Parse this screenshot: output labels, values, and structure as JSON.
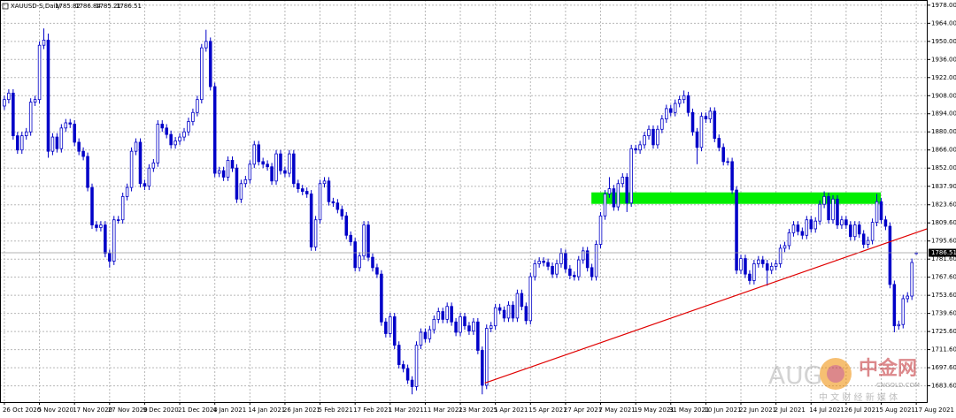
{
  "chart_data": {
    "type": "candlestick",
    "title": "XAUUSD-S,Daily",
    "xlim": [
      -1,
      210.6
    ],
    "ylim": [
      1671,
      1982
    ],
    "yticks": [
      {
        "value": 1978,
        "label": "1978.00"
      },
      {
        "value": 1964,
        "label": "1964.00"
      },
      {
        "value": 1950,
        "label": "1950.00"
      },
      {
        "value": 1936,
        "label": "1936.00"
      },
      {
        "value": 1922,
        "label": "1922.00"
      },
      {
        "value": 1908,
        "label": "1908.00"
      },
      {
        "value": 1894,
        "label": "1894.00"
      },
      {
        "value": 1880,
        "label": "1880.00"
      },
      {
        "value": 1866,
        "label": "1866.00"
      },
      {
        "value": 1852,
        "label": "1852.00"
      },
      {
        "value": 1837.9,
        "label": "1837.90"
      },
      {
        "value": 1823.6,
        "label": "1823.60"
      },
      {
        "value": 1809.6,
        "label": "1809.60"
      },
      {
        "value": 1795.6,
        "label": "1795.60"
      },
      {
        "value": 1781.6,
        "label": "1781.60"
      },
      {
        "value": 1767.6,
        "label": "1767.60"
      },
      {
        "value": 1753.6,
        "label": "1753.60"
      },
      {
        "value": 1739.6,
        "label": "1739.60"
      },
      {
        "value": 1725.6,
        "label": "1725.60"
      },
      {
        "value": 1711.6,
        "label": "1711.60"
      },
      {
        "value": 1697.6,
        "label": "1697.60"
      },
      {
        "value": 1683.6,
        "label": "1683.60"
      }
    ],
    "xticks": [
      {
        "value": 0,
        "label": "26 Oct 2020"
      },
      {
        "value": 8,
        "label": "5 Nov 2020"
      },
      {
        "value": 16,
        "label": "17 Nov 2020"
      },
      {
        "value": 24,
        "label": "27 Nov 2020"
      },
      {
        "value": 32,
        "label": "9 Dec 2020"
      },
      {
        "value": 40,
        "label": "21 Dec 2020"
      },
      {
        "value": 48,
        "label": "4 Jan 2021"
      },
      {
        "value": 56,
        "label": "14 Jan 2021"
      },
      {
        "value": 64,
        "label": "26 Jan 2021"
      },
      {
        "value": 72,
        "label": "5 Feb 2021"
      },
      {
        "value": 80,
        "label": "17 Feb 2021"
      },
      {
        "value": 88,
        "label": "1 Mar 2021"
      },
      {
        "value": 96,
        "label": "11 Mar 2021"
      },
      {
        "value": 104,
        "label": "23 Mar 2021"
      },
      {
        "value": 112,
        "label": "5 Apr 2021"
      },
      {
        "value": 120,
        "label": "15 Apr 2021"
      },
      {
        "value": 128,
        "label": "27 Apr 2021"
      },
      {
        "value": 136,
        "label": "7 May 2021"
      },
      {
        "value": 144,
        "label": "19 May 2021"
      },
      {
        "value": 152,
        "label": "31 May 2021"
      },
      {
        "value": 160,
        "label": "10 Jun 2021"
      },
      {
        "value": 168,
        "label": "22 Jun 2021"
      },
      {
        "value": 176,
        "label": "2 Jul 2021"
      },
      {
        "value": 184,
        "label": "14 Jul 2021"
      },
      {
        "value": 192,
        "label": "26 Jul 2021"
      },
      {
        "value": 200,
        "label": "5 Aug 2021"
      },
      {
        "value": 208,
        "label": "17 Aug 2021"
      }
    ],
    "grid": true,
    "up_color": "#ffffff",
    "down_color": "#0000c8",
    "line_color": "#0000c8",
    "open": [
      1900,
      1905,
      1910,
      1877,
      1866,
      1877,
      1880,
      1903,
      1905,
      1947,
      1951,
      1865,
      1876,
      1867,
      1883,
      1887,
      1886,
      1872,
      1865,
      1861,
      1837,
      1808,
      1806,
      1808,
      1786,
      1780,
      1812,
      1812,
      1830,
      1837,
      1865,
      1872,
      1840,
      1838,
      1852,
      1856,
      1886,
      1883,
      1878,
      1870,
      1873,
      1876,
      1880,
      1888,
      1895,
      1905,
      1945,
      1950,
      1915,
      1848,
      1850,
      1845,
      1858,
      1852,
      1828,
      1840,
      1843,
      1855,
      1870,
      1857,
      1855,
      1853,
      1842,
      1863,
      1850,
      1848,
      1863,
      1840,
      1836,
      1834,
      1832,
      1791,
      1812,
      1840,
      1842,
      1826,
      1825,
      1820,
      1815,
      1800,
      1795,
      1775,
      1784,
      1808,
      1783,
      1775,
      1770,
      1733,
      1724,
      1737,
      1715,
      1700,
      1697,
      1688,
      1683,
      1715,
      1725,
      1720,
      1727,
      1735,
      1741,
      1735,
      1745,
      1733,
      1725,
      1737,
      1730,
      1726,
      1733,
      1711,
      1684,
      1728,
      1730,
      1744,
      1742,
      1736,
      1746,
      1736,
      1755,
      1745,
      1734,
      1768,
      1778,
      1780,
      1779,
      1776,
      1770,
      1778,
      1786,
      1774,
      1769,
      1768,
      1781,
      1788,
      1775,
      1768,
      1793,
      1815,
      1832,
      1836,
      1822,
      1840,
      1845,
      1825,
      1867,
      1866,
      1870,
      1877,
      1882,
      1870,
      1882,
      1890,
      1898,
      1895,
      1902,
      1905,
      1908,
      1895,
      1880,
      1868,
      1892,
      1890,
      1896,
      1875,
      1868,
      1857,
      1857,
      1835,
      1773,
      1782,
      1770,
      1765,
      1778,
      1781,
      1778,
      1773,
      1776,
      1778,
      1790,
      1792,
      1802,
      1808,
      1803,
      1800,
      1812,
      1805,
      1811,
      1824,
      1830,
      1812,
      1828,
      1808,
      1812,
      1808,
      1799,
      1808,
      1801,
      1793,
      1796,
      1810,
      1826,
      1812,
      1807,
      1762,
      1730,
      1731,
      1751,
      1753,
      1785.82
    ],
    "high": [
      1908,
      1913,
      1913,
      1880,
      1880,
      1883,
      1906,
      1908,
      1950,
      1960,
      1956,
      1879,
      1879,
      1886,
      1890,
      1890,
      1889,
      1875,
      1868,
      1864,
      1840,
      1811,
      1811,
      1811,
      1789,
      1815,
      1815,
      1833,
      1840,
      1868,
      1875,
      1875,
      1843,
      1855,
      1859,
      1889,
      1889,
      1886,
      1881,
      1876,
      1879,
      1883,
      1891,
      1898,
      1908,
      1948,
      1959,
      1953,
      1918,
      1853,
      1853,
      1861,
      1861,
      1855,
      1843,
      1846,
      1858,
      1873,
      1873,
      1860,
      1858,
      1856,
      1866,
      1866,
      1853,
      1866,
      1866,
      1843,
      1839,
      1837,
      1835,
      1815,
      1843,
      1845,
      1845,
      1829,
      1828,
      1823,
      1818,
      1803,
      1798,
      1787,
      1811,
      1811,
      1786,
      1778,
      1773,
      1736,
      1740,
      1740,
      1718,
      1703,
      1700,
      1691,
      1718,
      1728,
      1728,
      1730,
      1738,
      1744,
      1744,
      1748,
      1748,
      1736,
      1740,
      1740,
      1733,
      1736,
      1736,
      1714,
      1731,
      1733,
      1747,
      1747,
      1745,
      1749,
      1749,
      1758,
      1758,
      1748,
      1771,
      1781,
      1783,
      1783,
      1782,
      1779,
      1781,
      1790,
      1789,
      1777,
      1772,
      1784,
      1791,
      1791,
      1778,
      1796,
      1818,
      1835,
      1845,
      1839,
      1843,
      1848,
      1848,
      1870,
      1870,
      1873,
      1880,
      1885,
      1885,
      1885,
      1893,
      1901,
      1901,
      1905,
      1908,
      1912,
      1911,
      1898,
      1883,
      1895,
      1895,
      1899,
      1899,
      1878,
      1871,
      1860,
      1860,
      1838,
      1785,
      1785,
      1773,
      1781,
      1784,
      1784,
      1781,
      1779,
      1781,
      1793,
      1795,
      1805,
      1811,
      1811,
      1806,
      1815,
      1815,
      1814,
      1827,
      1834,
      1833,
      1831,
      1831,
      1815,
      1815,
      1811,
      1811,
      1811,
      1804,
      1799,
      1813,
      1832,
      1829,
      1815,
      1810,
      1765,
      1734,
      1754,
      1756,
      1782,
      1786.84
    ],
    "low": [
      1897,
      1902,
      1874,
      1863,
      1863,
      1874,
      1877,
      1900,
      1902,
      1944,
      1860,
      1862,
      1864,
      1864,
      1880,
      1883,
      1869,
      1862,
      1858,
      1834,
      1805,
      1803,
      1803,
      1783,
      1775,
      1777,
      1809,
      1809,
      1827,
      1834,
      1862,
      1837,
      1835,
      1835,
      1849,
      1853,
      1880,
      1875,
      1867,
      1867,
      1870,
      1873,
      1877,
      1885,
      1892,
      1902,
      1942,
      1912,
      1845,
      1845,
      1842,
      1842,
      1849,
      1825,
      1825,
      1837,
      1840,
      1852,
      1854,
      1852,
      1850,
      1839,
      1839,
      1847,
      1845,
      1845,
      1837,
      1833,
      1831,
      1829,
      1788,
      1788,
      1809,
      1837,
      1823,
      1822,
      1817,
      1812,
      1797,
      1792,
      1772,
      1772,
      1781,
      1780,
      1772,
      1767,
      1730,
      1721,
      1721,
      1712,
      1697,
      1694,
      1685,
      1677,
      1680,
      1712,
      1717,
      1717,
      1724,
      1732,
      1732,
      1732,
      1730,
      1722,
      1722,
      1727,
      1723,
      1723,
      1708,
      1677,
      1681,
      1725,
      1727,
      1739,
      1733,
      1733,
      1733,
      1733,
      1742,
      1731,
      1731,
      1765,
      1775,
      1776,
      1773,
      1767,
      1767,
      1775,
      1771,
      1766,
      1765,
      1765,
      1778,
      1772,
      1765,
      1765,
      1790,
      1812,
      1829,
      1819,
      1819,
      1837,
      1818,
      1822,
      1863,
      1863,
      1867,
      1874,
      1867,
      1867,
      1879,
      1887,
      1892,
      1892,
      1899,
      1902,
      1892,
      1877,
      1855,
      1865,
      1887,
      1887,
      1872,
      1865,
      1854,
      1854,
      1832,
      1770,
      1770,
      1767,
      1762,
      1762,
      1775,
      1775,
      1761,
      1770,
      1773,
      1775,
      1787,
      1789,
      1799,
      1800,
      1797,
      1797,
      1802,
      1802,
      1808,
      1821,
      1809,
      1809,
      1805,
      1805,
      1805,
      1796,
      1796,
      1798,
      1790,
      1790,
      1793,
      1807,
      1809,
      1804,
      1759,
      1725,
      1727,
      1728,
      1748,
      1750,
      1785.21
    ],
    "close": [
      1905,
      1910,
      1877,
      1866,
      1877,
      1880,
      1903,
      1905,
      1947,
      1951,
      1865,
      1876,
      1867,
      1883,
      1887,
      1886,
      1872,
      1865,
      1861,
      1837,
      1808,
      1806,
      1808,
      1786,
      1780,
      1812,
      1812,
      1830,
      1837,
      1865,
      1872,
      1840,
      1838,
      1852,
      1856,
      1886,
      1883,
      1878,
      1870,
      1873,
      1876,
      1880,
      1888,
      1895,
      1905,
      1945,
      1950,
      1915,
      1848,
      1850,
      1845,
      1858,
      1852,
      1828,
      1840,
      1843,
      1855,
      1870,
      1857,
      1855,
      1853,
      1842,
      1863,
      1850,
      1848,
      1863,
      1840,
      1836,
      1834,
      1832,
      1791,
      1812,
      1840,
      1842,
      1826,
      1825,
      1820,
      1815,
      1800,
      1795,
      1775,
      1784,
      1808,
      1783,
      1775,
      1770,
      1733,
      1724,
      1737,
      1715,
      1700,
      1697,
      1688,
      1683,
      1715,
      1725,
      1720,
      1727,
      1735,
      1741,
      1735,
      1745,
      1733,
      1725,
      1737,
      1730,
      1726,
      1733,
      1711,
      1684,
      1728,
      1730,
      1744,
      1742,
      1736,
      1746,
      1736,
      1755,
      1745,
      1734,
      1768,
      1778,
      1780,
      1779,
      1776,
      1770,
      1778,
      1786,
      1774,
      1769,
      1768,
      1781,
      1788,
      1775,
      1768,
      1793,
      1815,
      1832,
      1836,
      1822,
      1840,
      1845,
      1825,
      1867,
      1866,
      1870,
      1877,
      1882,
      1870,
      1882,
      1890,
      1898,
      1895,
      1902,
      1905,
      1908,
      1895,
      1880,
      1868,
      1892,
      1890,
      1896,
      1875,
      1868,
      1857,
      1857,
      1835,
      1773,
      1782,
      1770,
      1765,
      1778,
      1781,
      1778,
      1773,
      1776,
      1778,
      1790,
      1792,
      1802,
      1808,
      1803,
      1800,
      1812,
      1805,
      1811,
      1824,
      1830,
      1812,
      1828,
      1808,
      1812,
      1808,
      1799,
      1808,
      1801,
      1793,
      1796,
      1810,
      1826,
      1812,
      1807,
      1762,
      1730,
      1731,
      1751,
      1753,
      1779,
      1786.51
    ],
    "trendline": {
      "color": "#e00000",
      "x": [
        109.6,
        210.6
      ],
      "y": [
        1685.7,
        1805.2
      ]
    },
    "zone": {
      "color": "#00ee00",
      "x": [
        133.9,
        199.9
      ],
      "y": [
        1824.3,
        1833.2
      ]
    },
    "watermark": {
      "prefix": "AUG",
      "brand": "中金网",
      "site": "CNGOLD.COM",
      "slogan": "中 文 财 经 新 媒 体"
    }
  }
}
